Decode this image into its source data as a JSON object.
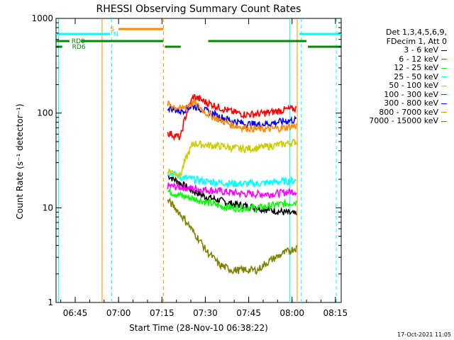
{
  "chart_data": {
    "type": "line",
    "title": "RHESSI Observing Summary Count Rates",
    "xlabel": "Start Time (28-Nov-10 06:38:22)",
    "ylabel": "Count Rate (s⁻¹ detector⁻¹)",
    "yscale": "log",
    "ylim": [
      1,
      1000
    ],
    "xlim_minutes": [
      38.37,
      137.0
    ],
    "x_tick_labels": [
      "06:45",
      "07:00",
      "07:15",
      "07:30",
      "07:45",
      "08:00",
      "08:15"
    ],
    "x_tick_minutes": [
      45,
      60,
      75,
      90,
      105,
      120,
      135
    ],
    "y_tick_labels": [
      "1",
      "10",
      "100",
      "1000"
    ],
    "y_tick_values": [
      1,
      10,
      100,
      1000
    ],
    "legend_header": [
      "Det 1,3,4,5,6,9,",
      "FDecim 1, Att 0"
    ],
    "series": [
      {
        "name": "3 - 6 keV",
        "color": "#000000",
        "x_start": 77,
        "x_end": 121.5,
        "values": [
          22,
          18,
          15,
          13,
          12,
          11,
          10.5,
          10,
          9.5,
          9,
          8.5
        ]
      },
      {
        "name": "6 - 12 keV",
        "color": "#ff00ff",
        "x_start": 77,
        "x_end": 121.5,
        "values": [
          17,
          16.5,
          16,
          15.5,
          15,
          14.5,
          14,
          14,
          14,
          14.5,
          15
        ]
      },
      {
        "name": "12 - 25 keV",
        "color": "#00ff00",
        "x_start": 77,
        "x_end": 121.5,
        "values": [
          15,
          13.5,
          12.5,
          11.5,
          10.5,
          10,
          10,
          10,
          10.5,
          11,
          11.5
        ]
      },
      {
        "name": "25 - 50 keV",
        "color": "#00ffff",
        "x_start": 77,
        "x_end": 121.5,
        "values": [
          24,
          21,
          20,
          19,
          18.5,
          18,
          18,
          18,
          18.5,
          19,
          19.5
        ]
      },
      {
        "name": "50 - 100 keV",
        "color": "#cccc00",
        "x_start": 77,
        "x_end": 121.5,
        "values": [
          25,
          22,
          48,
          46,
          45,
          43,
          42,
          43,
          45,
          47,
          50
        ]
      },
      {
        "name": "100 - 300 keV",
        "color": "#ff0000",
        "x_start": 77,
        "x_end": 121.5,
        "values": [
          62,
          55,
          150,
          130,
          115,
          103,
          97,
          98,
          102,
          108,
          112
        ]
      },
      {
        "name": "300 - 800 keV",
        "color": "#0000ff",
        "x_start": 77,
        "x_end": 121.5,
        "values": [
          115,
          105,
          120,
          105,
          92,
          83,
          77,
          76,
          78,
          82,
          85
        ]
      },
      {
        "name": "800 - 7000 keV",
        "color": "#ff8800",
        "x_start": 77,
        "x_end": 121.5,
        "values": [
          125,
          110,
          130,
          100,
          85,
          75,
          70,
          68,
          68,
          70,
          74
        ]
      },
      {
        "name": "7000 - 15000 keV",
        "color": "#808000",
        "x_start": 77,
        "x_end": 121.5,
        "values": [
          12,
          8.5,
          5.5,
          3.5,
          2.5,
          2.2,
          2.2,
          2.2,
          2.8,
          3.3,
          3.8
        ]
      }
    ],
    "flag_bars": [
      {
        "label": "S",
        "color": "#ff8800",
        "segments": [
          [
            60,
            75.5
          ]
        ]
      },
      {
        "label": "N",
        "color": "#00ffff",
        "segments": [
          [
            38.37,
            57
          ],
          [
            122.5,
            137
          ]
        ]
      },
      {
        "label": "RD0",
        "color": "#008800",
        "segments": [
          [
            38.37,
            43
          ],
          [
            47,
            75.5
          ],
          [
            91,
            125
          ]
        ]
      },
      {
        "label": "RD6",
        "color": "#008800",
        "segments": [
          [
            38.37,
            40.5
          ],
          [
            76,
            81.5
          ],
          [
            125.5,
            137
          ]
        ]
      }
    ],
    "vertical_markers": [
      {
        "x": 39.2,
        "color": "#00ffff",
        "style": "solid"
      },
      {
        "x": 54.3,
        "color": "#ff8800",
        "style": "solid"
      },
      {
        "x": 57.6,
        "color": "#00ffff",
        "style": "dashed"
      },
      {
        "x": 75.5,
        "color": "#ff8800",
        "style": "dashed"
      },
      {
        "x": 119.2,
        "color": "#00ffff",
        "style": "solid"
      },
      {
        "x": 121.8,
        "color": "#ff8800",
        "style": "solid"
      },
      {
        "x": 123.2,
        "color": "#00ffff",
        "style": "dashed"
      },
      {
        "x": 135.3,
        "color": "#00ffff",
        "style": "dashed"
      }
    ]
  },
  "footer": {
    "timestamp": "17-Oct-2021 11:05"
  }
}
